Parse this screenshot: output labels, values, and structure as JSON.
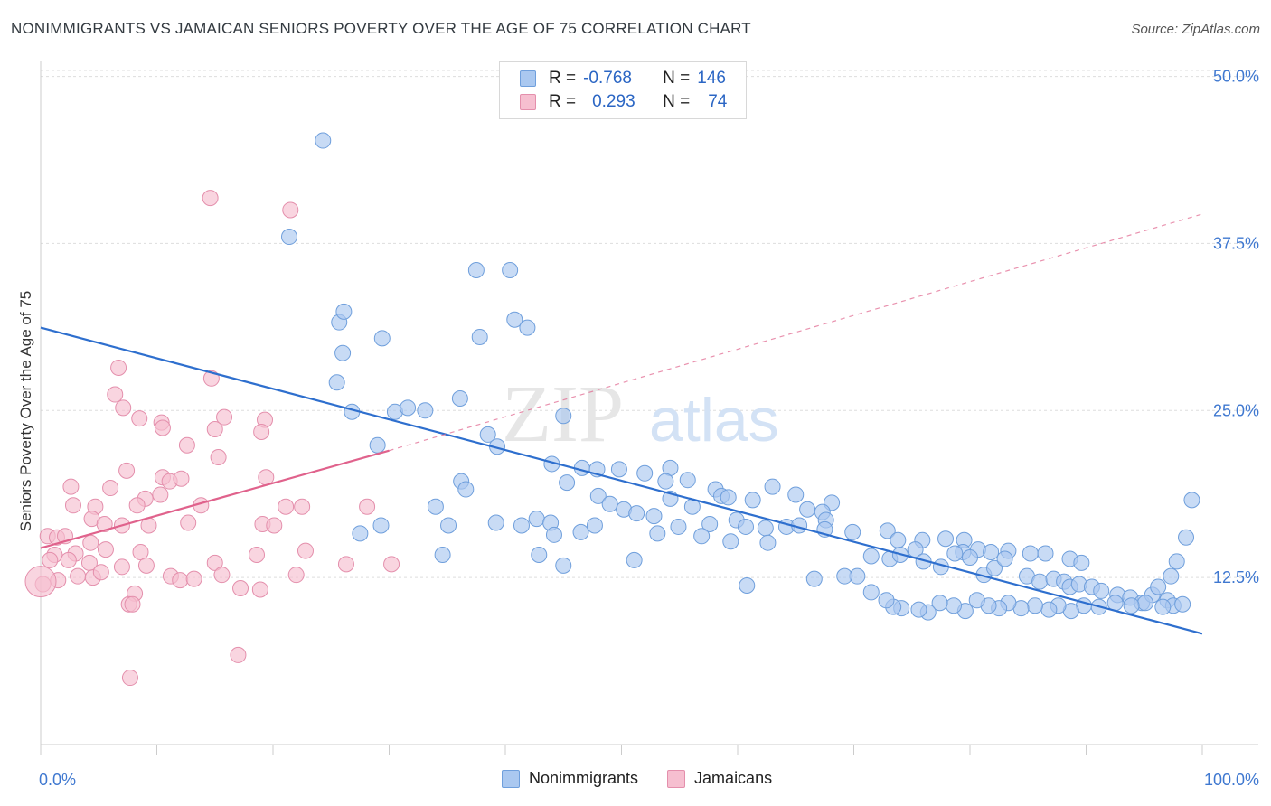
{
  "title": "NONIMMIGRANTS VS JAMAICAN SENIORS POVERTY OVER THE AGE OF 75 CORRELATION CHART",
  "source": "Source: ZipAtlas.com",
  "watermark": {
    "zip": "ZIP",
    "atlas": "atlas"
  },
  "legend": {
    "rows": [
      {
        "r_label": "R =",
        "r_value": "-0.768",
        "n_label": "N =",
        "n_value": "146"
      },
      {
        "r_label": "R =",
        "r_value": "0.293",
        "n_label": "N =",
        "n_value": "74"
      }
    ]
  },
  "bottom_legend": {
    "series1": "Nonimmigrants",
    "series2": "Jamaicans"
  },
  "colors": {
    "blue_fill": "#aac8f0",
    "blue_stroke": "#6f9fdc",
    "blue_line": "#2e6fce",
    "pink_fill": "#f6bfd0",
    "pink_stroke": "#e48fac",
    "pink_line": "#e0628c",
    "tick_label": "#3f78d0",
    "grid": "#dddddd"
  },
  "chart_data": {
    "type": "scatter",
    "title": "NONIMMIGRANTS VS JAMAICAN SENIORS POVERTY OVER THE AGE OF 75 CORRELATION CHART",
    "xlabel": "",
    "ylabel": "Seniors Poverty Over the Age of 75",
    "xlim": [
      0,
      100
    ],
    "ylim": [
      0,
      52
    ],
    "x_tick_labels": [
      "0.0%",
      "100.0%"
    ],
    "y_ticks": [
      12.5,
      25.0,
      37.5,
      50.0
    ],
    "y_tick_labels": [
      "12.5%",
      "25.0%",
      "37.5%",
      "50.0%"
    ],
    "grid": true,
    "legend_position": "top-center",
    "series": [
      {
        "name": "Nonimmigrants",
        "r": -0.768,
        "n": 146,
        "trend": {
          "x": [
            0,
            100
          ],
          "y": [
            31.2,
            8.3
          ],
          "style": "solid"
        },
        "points": [
          [
            24.3,
            45.2
          ],
          [
            21.4,
            38.0
          ],
          [
            37.5,
            35.5
          ],
          [
            40.4,
            35.5
          ],
          [
            25.7,
            31.6
          ],
          [
            26.1,
            32.4
          ],
          [
            40.8,
            31.8
          ],
          [
            41.9,
            31.2
          ],
          [
            37.8,
            30.5
          ],
          [
            29.4,
            30.4
          ],
          [
            26.0,
            29.3
          ],
          [
            25.5,
            27.1
          ],
          [
            30.5,
            24.9
          ],
          [
            36.1,
            25.9
          ],
          [
            31.6,
            25.2
          ],
          [
            33.1,
            25.0
          ],
          [
            26.8,
            24.9
          ],
          [
            45.0,
            24.6
          ],
          [
            38.5,
            23.2
          ],
          [
            29.0,
            22.4
          ],
          [
            39.3,
            22.3
          ],
          [
            44.0,
            21.0
          ],
          [
            46.6,
            20.7
          ],
          [
            47.9,
            20.6
          ],
          [
            49.8,
            20.6
          ],
          [
            52.0,
            20.3
          ],
          [
            54.2,
            20.7
          ],
          [
            53.8,
            19.7
          ],
          [
            45.3,
            19.6
          ],
          [
            55.7,
            19.8
          ],
          [
            36.2,
            19.7
          ],
          [
            36.6,
            19.1
          ],
          [
            58.1,
            19.1
          ],
          [
            63.0,
            19.3
          ],
          [
            58.6,
            18.6
          ],
          [
            48.0,
            18.6
          ],
          [
            54.2,
            18.4
          ],
          [
            59.2,
            18.5
          ],
          [
            61.3,
            18.3
          ],
          [
            65.0,
            18.7
          ],
          [
            68.1,
            18.1
          ],
          [
            66.0,
            17.6
          ],
          [
            67.3,
            17.4
          ],
          [
            56.1,
            17.8
          ],
          [
            50.2,
            17.6
          ],
          [
            49.0,
            18.0
          ],
          [
            51.3,
            17.3
          ],
          [
            52.8,
            17.1
          ],
          [
            34.0,
            17.8
          ],
          [
            42.7,
            16.9
          ],
          [
            41.4,
            16.4
          ],
          [
            39.2,
            16.6
          ],
          [
            43.9,
            16.6
          ],
          [
            47.7,
            16.4
          ],
          [
            35.1,
            16.4
          ],
          [
            29.3,
            16.4
          ],
          [
            54.9,
            16.3
          ],
          [
            57.6,
            16.5
          ],
          [
            59.9,
            16.8
          ],
          [
            60.7,
            16.3
          ],
          [
            62.4,
            16.2
          ],
          [
            64.2,
            16.3
          ],
          [
            65.3,
            16.4
          ],
          [
            67.6,
            16.8
          ],
          [
            27.5,
            15.8
          ],
          [
            44.2,
            15.7
          ],
          [
            46.5,
            15.9
          ],
          [
            53.1,
            15.8
          ],
          [
            56.9,
            15.6
          ],
          [
            59.4,
            15.2
          ],
          [
            62.6,
            15.1
          ],
          [
            67.5,
            16.1
          ],
          [
            69.9,
            15.9
          ],
          [
            72.9,
            16.0
          ],
          [
            73.8,
            15.3
          ],
          [
            75.9,
            15.3
          ],
          [
            77.9,
            15.4
          ],
          [
            79.5,
            15.3
          ],
          [
            79.4,
            14.4
          ],
          [
            80.7,
            14.6
          ],
          [
            81.8,
            14.4
          ],
          [
            83.3,
            14.5
          ],
          [
            85.2,
            14.3
          ],
          [
            86.5,
            14.3
          ],
          [
            88.6,
            13.9
          ],
          [
            89.6,
            13.6
          ],
          [
            34.6,
            14.2
          ],
          [
            42.9,
            14.2
          ],
          [
            45.0,
            13.4
          ],
          [
            51.1,
            13.8
          ],
          [
            71.5,
            14.1
          ],
          [
            73.1,
            13.9
          ],
          [
            74.0,
            14.2
          ],
          [
            75.3,
            14.6
          ],
          [
            76.0,
            13.7
          ],
          [
            77.5,
            13.3
          ],
          [
            78.7,
            14.3
          ],
          [
            80.0,
            14.0
          ],
          [
            81.2,
            12.7
          ],
          [
            82.1,
            13.2
          ],
          [
            83.0,
            13.9
          ],
          [
            84.9,
            12.6
          ],
          [
            86.0,
            12.2
          ],
          [
            87.2,
            12.4
          ],
          [
            88.1,
            12.2
          ],
          [
            88.6,
            11.8
          ],
          [
            89.4,
            12.0
          ],
          [
            90.5,
            11.8
          ],
          [
            91.3,
            11.5
          ],
          [
            92.7,
            11.2
          ],
          [
            93.8,
            11.0
          ],
          [
            94.8,
            10.6
          ],
          [
            95.7,
            11.2
          ],
          [
            97.0,
            10.8
          ],
          [
            97.5,
            10.4
          ],
          [
            98.3,
            10.5
          ],
          [
            96.6,
            10.3
          ],
          [
            95.1,
            10.6
          ],
          [
            93.9,
            10.4
          ],
          [
            92.5,
            10.6
          ],
          [
            91.1,
            10.3
          ],
          [
            89.8,
            10.4
          ],
          [
            88.7,
            10.0
          ],
          [
            87.6,
            10.4
          ],
          [
            86.8,
            10.1
          ],
          [
            85.6,
            10.4
          ],
          [
            84.4,
            10.2
          ],
          [
            83.3,
            10.6
          ],
          [
            82.5,
            10.2
          ],
          [
            81.6,
            10.4
          ],
          [
            80.6,
            10.8
          ],
          [
            79.6,
            10.0
          ],
          [
            78.6,
            10.4
          ],
          [
            77.4,
            10.6
          ],
          [
            76.4,
            9.9
          ],
          [
            75.6,
            10.1
          ],
          [
            74.1,
            10.2
          ],
          [
            73.4,
            10.3
          ],
          [
            72.8,
            10.8
          ],
          [
            71.5,
            11.4
          ],
          [
            70.3,
            12.6
          ],
          [
            69.2,
            12.6
          ],
          [
            66.6,
            12.4
          ],
          [
            60.8,
            11.9
          ],
          [
            99.1,
            18.3
          ],
          [
            98.6,
            15.5
          ],
          [
            97.8,
            13.7
          ],
          [
            97.3,
            12.6
          ],
          [
            96.2,
            11.8
          ]
        ]
      },
      {
        "name": "Jamaicans",
        "r": 0.293,
        "n": 74,
        "trend": {
          "x": [
            0,
            30
          ],
          "y": [
            14.7,
            22.0
          ],
          "style": "solid",
          "extension": {
            "x": [
              30,
              100
            ],
            "y": [
              22.0,
              39.7
            ],
            "style": "dashed"
          }
        },
        "points": [
          [
            14.6,
            40.9
          ],
          [
            21.5,
            40.0
          ],
          [
            6.7,
            28.2
          ],
          [
            14.7,
            27.4
          ],
          [
            6.4,
            26.2
          ],
          [
            7.1,
            25.2
          ],
          [
            8.5,
            24.4
          ],
          [
            10.4,
            24.1
          ],
          [
            15.8,
            24.5
          ],
          [
            19.3,
            24.3
          ],
          [
            10.5,
            23.7
          ],
          [
            15.0,
            23.6
          ],
          [
            19.0,
            23.4
          ],
          [
            12.6,
            22.4
          ],
          [
            15.3,
            21.5
          ],
          [
            7.4,
            20.5
          ],
          [
            10.5,
            20.0
          ],
          [
            11.1,
            19.7
          ],
          [
            12.1,
            19.9
          ],
          [
            19.4,
            20.0
          ],
          [
            2.6,
            19.3
          ],
          [
            6.0,
            19.2
          ],
          [
            10.3,
            18.7
          ],
          [
            9.0,
            18.4
          ],
          [
            2.8,
            17.9
          ],
          [
            4.7,
            17.8
          ],
          [
            8.3,
            17.9
          ],
          [
            13.8,
            17.9
          ],
          [
            21.1,
            17.8
          ],
          [
            22.5,
            17.8
          ],
          [
            28.1,
            17.8
          ],
          [
            4.4,
            16.9
          ],
          [
            5.5,
            16.5
          ],
          [
            7.0,
            16.4
          ],
          [
            9.3,
            16.4
          ],
          [
            12.7,
            16.6
          ],
          [
            19.1,
            16.5
          ],
          [
            20.1,
            16.4
          ],
          [
            0.6,
            15.6
          ],
          [
            1.4,
            15.5
          ],
          [
            2.1,
            15.6
          ],
          [
            4.3,
            15.1
          ],
          [
            5.6,
            14.6
          ],
          [
            8.6,
            14.4
          ],
          [
            3.0,
            14.3
          ],
          [
            1.2,
            14.2
          ],
          [
            0.8,
            13.8
          ],
          [
            2.4,
            13.8
          ],
          [
            4.2,
            13.6
          ],
          [
            7.0,
            13.3
          ],
          [
            9.1,
            13.4
          ],
          [
            15.0,
            13.6
          ],
          [
            18.6,
            14.2
          ],
          [
            22.8,
            14.5
          ],
          [
            26.3,
            13.5
          ],
          [
            30.2,
            13.5
          ],
          [
            3.2,
            12.6
          ],
          [
            4.5,
            12.5
          ],
          [
            11.2,
            12.6
          ],
          [
            12.0,
            12.3
          ],
          [
            13.2,
            12.4
          ],
          [
            15.6,
            12.7
          ],
          [
            22.0,
            12.7
          ],
          [
            0.2,
            12.0
          ],
          [
            1.5,
            12.3
          ],
          [
            5.2,
            12.9
          ],
          [
            8.1,
            11.3
          ],
          [
            7.6,
            10.5
          ],
          [
            7.9,
            10.5
          ],
          [
            17.2,
            11.7
          ],
          [
            18.9,
            11.6
          ],
          [
            0.0,
            12.2
          ],
          [
            17.0,
            6.7
          ],
          [
            7.7,
            5.0
          ]
        ]
      }
    ]
  }
}
